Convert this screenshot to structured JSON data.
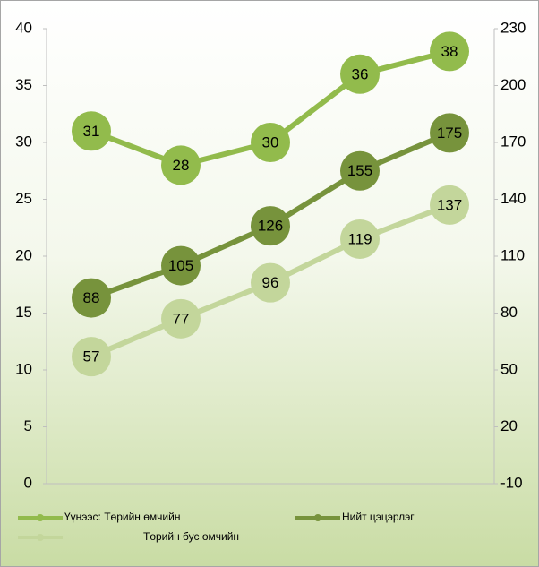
{
  "chart_data": {
    "type": "line",
    "categories": [
      null,
      null,
      null,
      null,
      null
    ],
    "series": [
      {
        "name": "Үүнээс: Төрийн өмчийн",
        "color": "#92bb4c",
        "values": [
          31,
          28,
          30,
          36,
          38
        ]
      },
      {
        "name": "Нийт цэцэрлэг",
        "color": "#77933c",
        "axis": "y2",
        "values": [
          88,
          105,
          126,
          155,
          175
        ]
      },
      {
        "name": "Төрийн бус өмчийн",
        "color": "#c3d69b",
        "axis": "y2",
        "values": [
          57,
          77,
          96,
          119,
          137
        ]
      }
    ],
    "ylim": [
      0,
      40
    ],
    "yticks": [
      0,
      5,
      10,
      15,
      20,
      25,
      30,
      35,
      40
    ],
    "y2lim": [
      -10,
      230
    ],
    "y2ticks": [
      -10,
      20,
      50,
      80,
      110,
      140,
      170,
      200,
      230
    ],
    "legend": "bottom"
  }
}
